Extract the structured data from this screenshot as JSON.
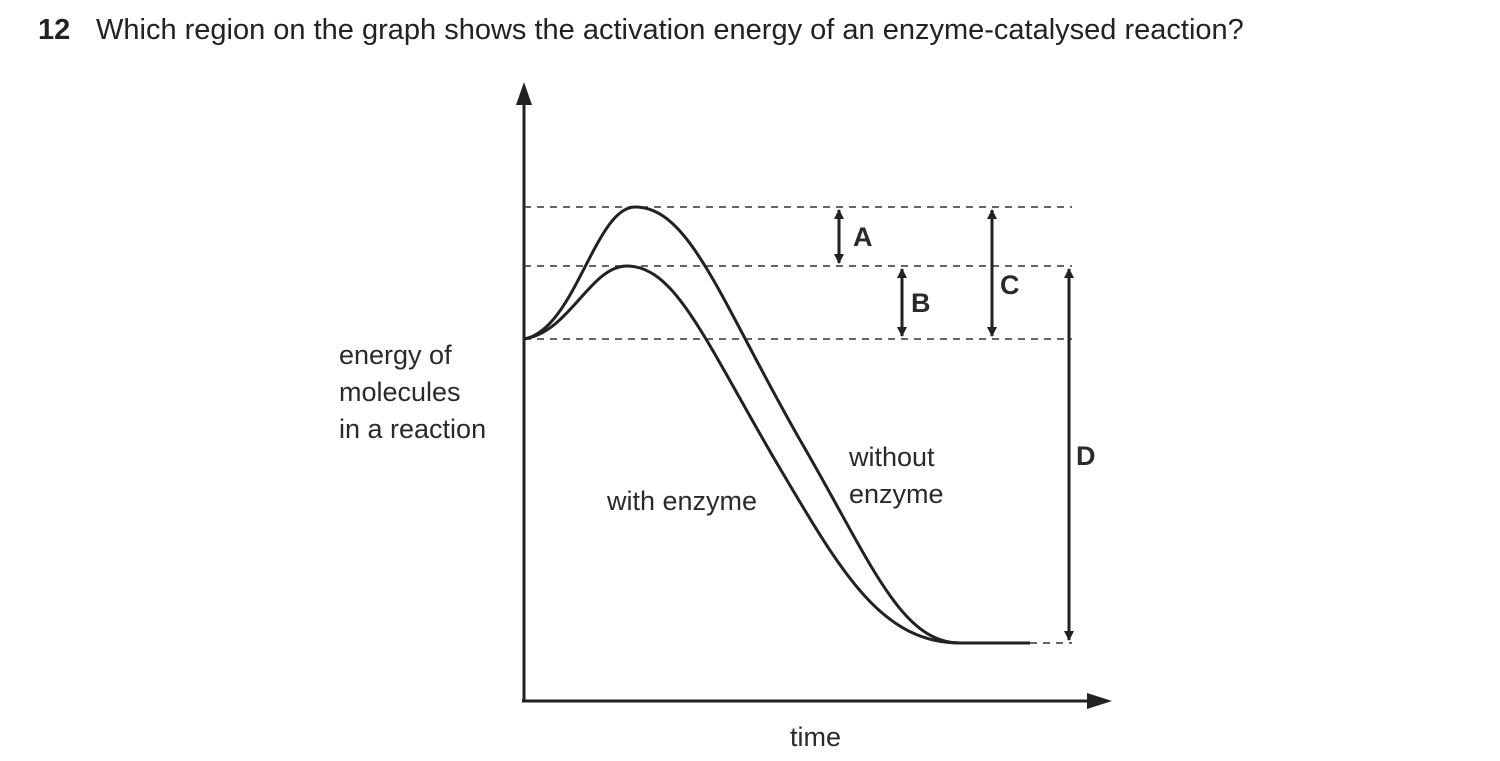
{
  "question": {
    "number": "12",
    "text": "Which region on the graph shows the activation energy of an enzyme-catalysed reaction?"
  },
  "diagram": {
    "y_axis_label": [
      "energy of",
      "molecules",
      "in a reaction"
    ],
    "x_axis_label": "time",
    "curve_labels": {
      "with_enzyme": "with enzyme",
      "without_enzyme": [
        "without",
        "enzyme"
      ]
    },
    "regions": {
      "a": "A",
      "b": "B",
      "c": "C",
      "d": "D"
    }
  }
}
